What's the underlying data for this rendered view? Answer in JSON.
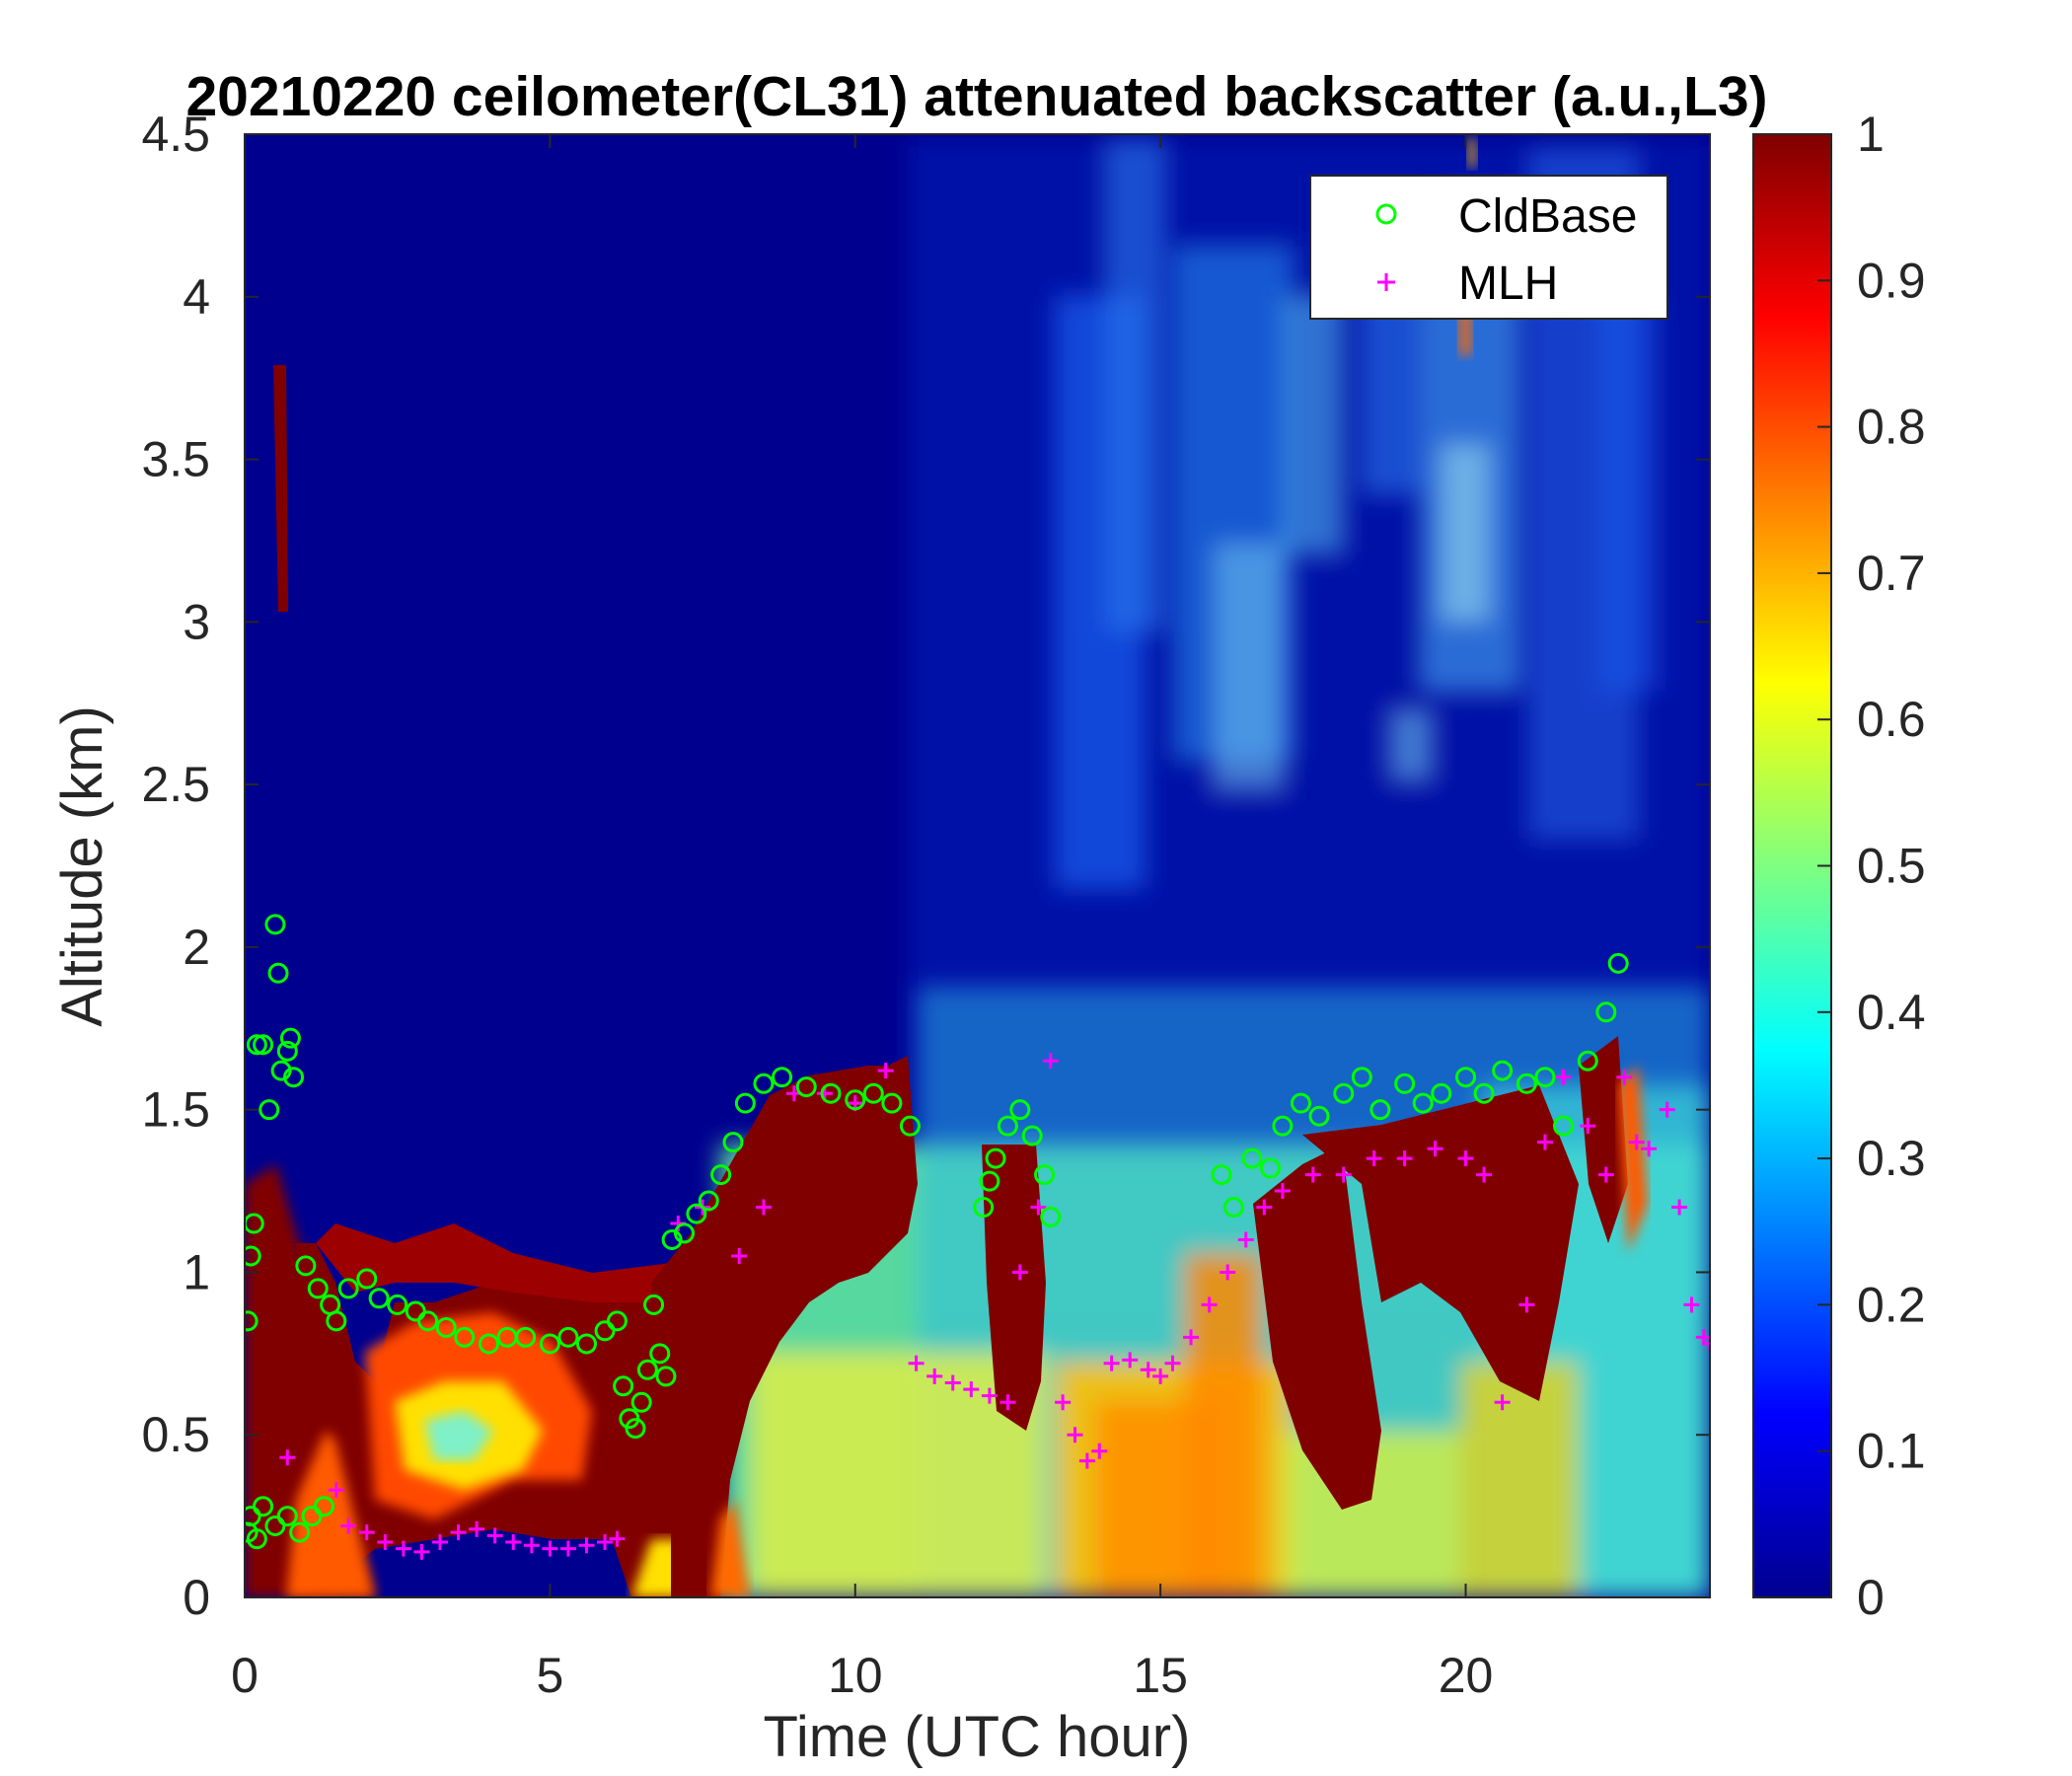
{
  "chart_data": {
    "type": "heatmap",
    "title": "20210220 ceilometer(CL31) attenuated backscatter (a.u.,L3)",
    "xlabel": "Time (UTC hour)",
    "ylabel": "Altitude (km)",
    "xlim": [
      0,
      24
    ],
    "ylim": [
      0,
      4.5
    ],
    "x_ticks": [
      0,
      5,
      10,
      15,
      20
    ],
    "x_tick_labels": [
      "0",
      "5",
      "10",
      "15",
      "20"
    ],
    "y_ticks": [
      0,
      0.5,
      1,
      1.5,
      2,
      2.5,
      3,
      3.5,
      4,
      4.5
    ],
    "y_tick_labels": [
      "0",
      "0.5",
      "1",
      "1.5",
      "2",
      "2.5",
      "3",
      "3.5",
      "4",
      "4.5"
    ],
    "colorbar": {
      "colormap": "jet",
      "range": [
        0,
        1
      ],
      "ticks": [
        0,
        0.1,
        0.2,
        0.3,
        0.4,
        0.5,
        0.6,
        0.7,
        0.8,
        0.9,
        1
      ],
      "tick_labels": [
        "0",
        "0.1",
        "0.2",
        "0.3",
        "0.4",
        "0.5",
        "0.6",
        "0.7",
        "0.8",
        "0.9",
        "1"
      ]
    },
    "legend": {
      "placement": "top-right",
      "entries": [
        {
          "label": "CldBase",
          "marker": "circle",
          "color": "#00ff00"
        },
        {
          "label": "MLH",
          "marker": "plus",
          "color": "#ff00ff"
        }
      ]
    },
    "series": [
      {
        "name": "CldBase",
        "marker": "circle",
        "color": "#00ff00",
        "x": [
          0.05,
          0.1,
          0.15,
          0.2,
          0.3,
          0.4,
          0.5,
          0.55,
          0.6,
          0.7,
          0.75,
          0.8,
          1.0,
          1.2,
          1.4,
          1.5,
          1.7,
          2.0,
          2.2,
          2.5,
          2.8,
          3.0,
          3.3,
          3.6,
          4.0,
          4.3,
          4.6,
          5.0,
          5.3,
          5.6,
          5.9,
          6.1,
          6.2,
          6.3,
          6.4,
          6.5,
          6.6,
          6.7,
          6.8,
          6.9,
          7.0,
          7.2,
          7.4,
          7.6,
          7.8,
          8.0,
          8.2,
          8.5,
          8.8,
          9.2,
          9.6,
          10.0,
          10.3,
          10.6,
          10.9,
          12.1,
          12.2,
          12.3,
          12.5,
          12.7,
          12.9,
          13.1,
          13.2,
          16.0,
          16.2,
          16.5,
          16.8,
          17.0,
          17.3,
          17.6,
          18.0,
          18.3,
          18.6,
          19.0,
          19.3,
          19.6,
          20.0,
          20.3,
          20.6,
          21.0,
          21.3,
          21.6,
          22.0,
          22.3,
          22.5,
          0.05,
          0.1,
          0.2,
          0.3,
          0.5,
          0.7,
          0.9,
          1.1,
          1.3
        ],
        "y": [
          0.85,
          1.05,
          1.15,
          1.7,
          1.7,
          1.5,
          2.07,
          1.92,
          1.62,
          1.68,
          1.72,
          1.6,
          1.02,
          0.95,
          0.9,
          0.85,
          0.95,
          0.98,
          0.92,
          0.9,
          0.88,
          0.85,
          0.83,
          0.8,
          0.78,
          0.8,
          0.8,
          0.78,
          0.8,
          0.78,
          0.82,
          0.85,
          0.65,
          0.55,
          0.52,
          0.6,
          0.7,
          0.9,
          0.75,
          0.68,
          1.1,
          1.12,
          1.18,
          1.22,
          1.3,
          1.4,
          1.52,
          1.58,
          1.6,
          1.57,
          1.55,
          1.53,
          1.55,
          1.52,
          1.45,
          1.2,
          1.28,
          1.35,
          1.45,
          1.5,
          1.42,
          1.3,
          1.17,
          1.3,
          1.2,
          1.35,
          1.32,
          1.45,
          1.52,
          1.48,
          1.55,
          1.6,
          1.5,
          1.58,
          1.52,
          1.55,
          1.6,
          1.55,
          1.62,
          1.58,
          1.6,
          1.45,
          1.65,
          1.8,
          1.95,
          0.2,
          0.25,
          0.18,
          0.28,
          0.22,
          0.25,
          0.2,
          0.25,
          0.28
        ]
      },
      {
        "name": "MLH",
        "marker": "plus",
        "color": "#ff00ff",
        "x": [
          0.7,
          1.5,
          1.7,
          2.0,
          2.3,
          2.6,
          2.9,
          3.2,
          3.5,
          3.8,
          4.1,
          4.4,
          4.7,
          5.0,
          5.3,
          5.6,
          5.9,
          6.1,
          7.1,
          7.5,
          8.1,
          8.5,
          9.0,
          9.5,
          10.0,
          10.5,
          11.0,
          11.3,
          11.6,
          11.9,
          12.2,
          12.5,
          12.7,
          13.0,
          13.2,
          13.4,
          13.6,
          13.8,
          14.0,
          14.2,
          14.5,
          14.8,
          15.0,
          15.2,
          15.5,
          15.8,
          16.1,
          16.4,
          16.7,
          17.0,
          17.5,
          18.0,
          18.5,
          19.0,
          19.5,
          20.0,
          20.3,
          20.6,
          21.0,
          21.3,
          21.6,
          22.0,
          22.3,
          22.6,
          22.8,
          23.0,
          23.3,
          23.5,
          23.7,
          23.9,
          24.0
        ],
        "y": [
          0.43,
          0.33,
          0.22,
          0.2,
          0.17,
          0.15,
          0.14,
          0.17,
          0.2,
          0.21,
          0.19,
          0.17,
          0.16,
          0.15,
          0.15,
          0.16,
          0.17,
          0.18,
          1.15,
          1.2,
          1.05,
          1.2,
          1.55,
          1.55,
          1.52,
          1.62,
          0.72,
          0.68,
          0.66,
          0.64,
          0.62,
          0.6,
          1.0,
          1.2,
          1.65,
          0.6,
          0.5,
          0.42,
          0.45,
          0.72,
          0.73,
          0.7,
          0.68,
          0.72,
          0.8,
          0.9,
          1.0,
          1.1,
          1.2,
          1.25,
          1.3,
          1.3,
          1.35,
          1.35,
          1.38,
          1.35,
          1.3,
          0.6,
          0.9,
          1.4,
          1.6,
          1.45,
          1.3,
          1.6,
          1.4,
          1.38,
          1.5,
          1.2,
          0.9,
          0.8,
          0.78
        ]
      }
    ]
  }
}
